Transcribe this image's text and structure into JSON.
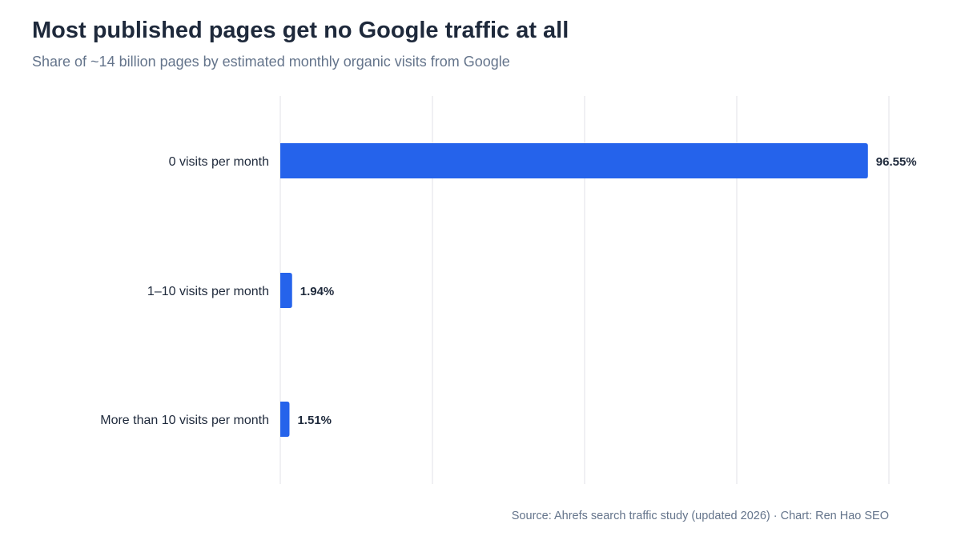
{
  "header": {
    "title": "Most published pages get no Google traffic at all",
    "subtitle": "Share of ~14 billion pages by estimated monthly organic visits from Google"
  },
  "footer": {
    "source": "Source: Ahrefs search traffic study (updated 2026) · Chart: Ren Hao SEO"
  },
  "chart_data": {
    "type": "bar",
    "orientation": "horizontal",
    "title": "Most published pages get no Google traffic at all",
    "subtitle": "Share of ~14 billion pages by estimated monthly organic visits from Google",
    "categories": [
      "0 visits per month",
      "1–10 visits per month",
      "More than 10 visits per month"
    ],
    "values": [
      96.55,
      1.94,
      1.51
    ],
    "value_labels": [
      "96.55%",
      "1.94%",
      "1.51%"
    ],
    "unit": "%",
    "xlim": [
      0,
      100
    ],
    "xgrid_values": [
      0,
      25,
      50,
      75,
      100
    ],
    "grid": true,
    "bar_color": "#2563eb",
    "grid_color": "#e5e7eb",
    "source": "Source: Ahrefs search traffic study (updated 2026) · Chart: Ren Hao SEO"
  }
}
